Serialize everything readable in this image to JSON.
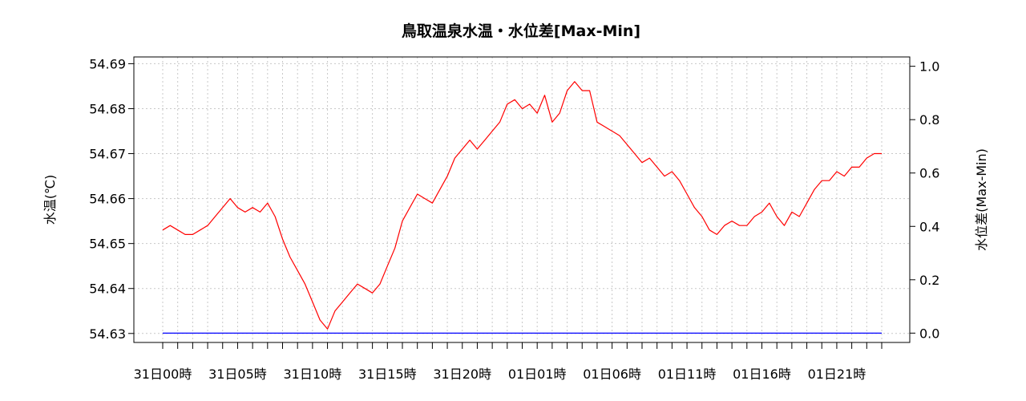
{
  "chart_data": {
    "type": "line",
    "title": "鳥取温泉水温・水位差[Max-Min]",
    "ylabel_left": "水温(℃)",
    "ylabel_right": "水位差(Max-Min)",
    "ylim_left": [
      54.628,
      54.6915
    ],
    "ylim_right": [
      -0.035,
      1.035
    ],
    "left_ticks": [
      "54.63",
      "54.64",
      "54.65",
      "54.66",
      "54.67",
      "54.68",
      "54.69"
    ],
    "right_ticks": [
      "0.0",
      "0.2",
      "0.4",
      "0.6",
      "0.8",
      "1.0"
    ],
    "x_hours_total": 48,
    "x_labels": [
      "31日00時",
      "31日05時",
      "31日10時",
      "31日15時",
      "31日20時",
      "01日01時",
      "01日06時",
      "01日11時",
      "01日16時",
      "01日21時"
    ],
    "grid": true,
    "series": [
      {
        "axis": "left",
        "color": "#ff0000",
        "x_hours": [
          0,
          0.5,
          1,
          1.5,
          2,
          2.5,
          3,
          3.5,
          4,
          4.5,
          5,
          5.5,
          6,
          6.5,
          7,
          7.5,
          8,
          8.5,
          9,
          9.5,
          10,
          10.5,
          11,
          11.5,
          12,
          12.5,
          13,
          13.5,
          14,
          14.5,
          15,
          15.5,
          16,
          16.5,
          17,
          17.5,
          18,
          18.5,
          19,
          19.5,
          20,
          20.5,
          21,
          21.5,
          22,
          22.5,
          23,
          23.5,
          24,
          24.5,
          25,
          25.5,
          26,
          26.5,
          27,
          27.5,
          28,
          28.5,
          29,
          29.5,
          30,
          30.5,
          31,
          31.5,
          32,
          32.5,
          33,
          33.5,
          34,
          34.5,
          35,
          35.5,
          36,
          36.5,
          37,
          37.5,
          38,
          38.5,
          39,
          39.5,
          40,
          40.5,
          41,
          41.5,
          42,
          42.5,
          43,
          43.5,
          44,
          44.5,
          45,
          45.5,
          46,
          46.5,
          47,
          47.5,
          48
        ],
        "values": [
          54.653,
          54.654,
          54.653,
          54.652,
          54.652,
          54.653,
          54.654,
          54.656,
          54.658,
          54.66,
          54.658,
          54.657,
          54.658,
          54.657,
          54.659,
          54.656,
          54.651,
          54.647,
          54.644,
          54.641,
          54.637,
          54.633,
          54.631,
          54.635,
          54.637,
          54.639,
          54.641,
          54.64,
          54.639,
          54.641,
          54.645,
          54.649,
          54.655,
          54.658,
          54.661,
          54.66,
          54.659,
          54.662,
          54.665,
          54.669,
          54.671,
          54.673,
          54.671,
          54.673,
          54.675,
          54.677,
          54.681,
          54.682,
          54.68,
          54.681,
          54.679,
          54.683,
          54.677,
          54.679,
          54.684,
          54.686,
          54.684,
          54.684,
          54.677,
          54.676,
          54.675,
          54.674,
          54.672,
          54.67,
          54.668,
          54.669,
          54.667,
          54.665,
          54.666,
          54.664,
          54.661,
          54.658,
          54.656,
          54.653,
          54.652,
          54.654,
          54.655,
          54.654,
          54.654,
          54.656,
          54.657,
          54.659,
          54.656,
          54.654,
          54.657,
          54.656,
          54.659,
          54.662,
          54.664,
          54.664,
          54.666,
          54.665,
          54.667,
          54.667,
          54.669,
          54.67,
          54.67
        ]
      },
      {
        "axis": "right",
        "color": "#0000ff",
        "x_hours": [
          0,
          48
        ],
        "values": [
          0.0,
          0.0
        ]
      }
    ]
  }
}
